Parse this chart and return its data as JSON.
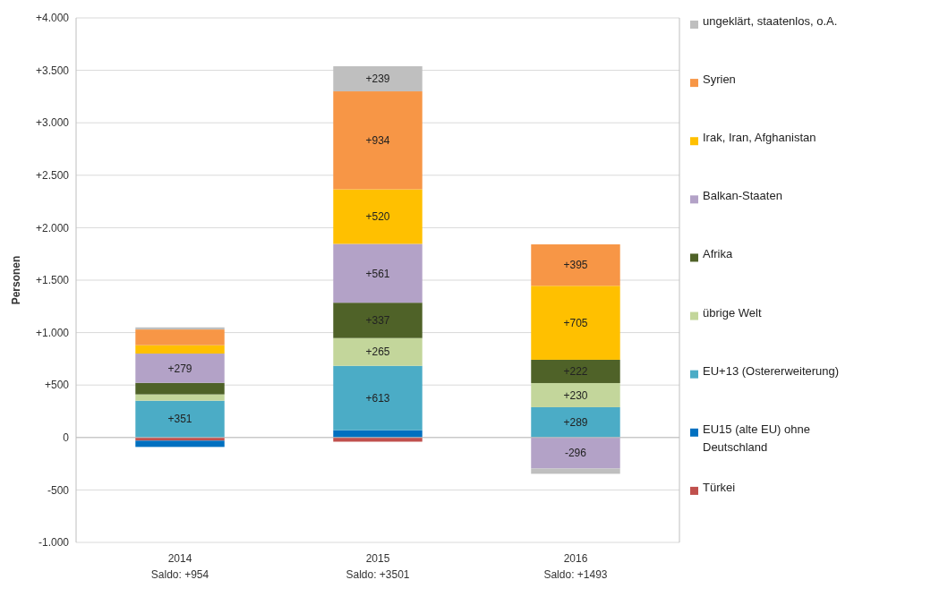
{
  "chart_data": {
    "type": "bar",
    "stacked": true,
    "ylabel": "Personen",
    "categories": [
      "2014\nSaldo: +954",
      "2015\nSaldo: +3501",
      "2016\nSaldo: +1493"
    ],
    "ylim": [
      -1000,
      4000
    ],
    "yticks": [
      {
        "value": -1000,
        "label": "-1.000"
      },
      -500,
      0,
      {
        "value": 500,
        "label": "+500"
      },
      {
        "value": 1000,
        "label": "+1.000"
      },
      {
        "value": 1500,
        "label": "+1.500"
      },
      {
        "value": 2000,
        "label": "+2.000"
      },
      {
        "value": 2500,
        "label": "+2.500"
      },
      {
        "value": 3000,
        "label": "+3.000"
      },
      {
        "value": 3500,
        "label": "+3.500"
      },
      {
        "value": 4000,
        "label": "+4.000"
      }
    ],
    "grid": "y",
    "legend": "right",
    "series": [
      {
        "name": "Türkei",
        "color": "#c0504d",
        "values": [
          -30,
          -40,
          0
        ],
        "value_labels": [
          null,
          null,
          null
        ]
      },
      {
        "name": "EU15 (alte EU) ohne Deutschland",
        "color": "#0070c0",
        "values": [
          -60,
          70,
          0
        ],
        "value_labels": [
          null,
          null,
          null
        ]
      },
      {
        "name": "EU+13 (Ostererweiterung)",
        "color": "#4bacc6",
        "values": [
          351,
          613,
          289
        ],
        "value_labels": [
          "+351",
          "+613",
          "+289"
        ]
      },
      {
        "name": "übrige Welt",
        "color": "#c3d69b",
        "values": [
          60,
          265,
          230
        ],
        "value_labels": [
          null,
          "+265",
          "+230"
        ]
      },
      {
        "name": "Afrika",
        "color": "#4f6228",
        "values": [
          110,
          337,
          222
        ],
        "value_labels": [
          null,
          "+337",
          "+222"
        ]
      },
      {
        "name": "Balkan-Staaten",
        "color": "#b3a2c7",
        "values": [
          279,
          561,
          -296
        ],
        "value_labels": [
          "+279",
          "+561",
          "-296"
        ]
      },
      {
        "name": "Irak, Iran, Afghanistan",
        "color": "#ffc000",
        "values": [
          80,
          520,
          705
        ],
        "value_labels": [
          null,
          "+520",
          "+705"
        ]
      },
      {
        "name": "Syrien",
        "color": "#f79646",
        "values": [
          150,
          934,
          395
        ],
        "value_labels": [
          null,
          "+934",
          "+395"
        ]
      },
      {
        "name": "ungeklärt, staatenlos, o.A.",
        "color": "#bfbfbf",
        "values": [
          20,
          239,
          -50
        ],
        "value_labels": [
          null,
          "+239",
          null
        ]
      }
    ]
  }
}
